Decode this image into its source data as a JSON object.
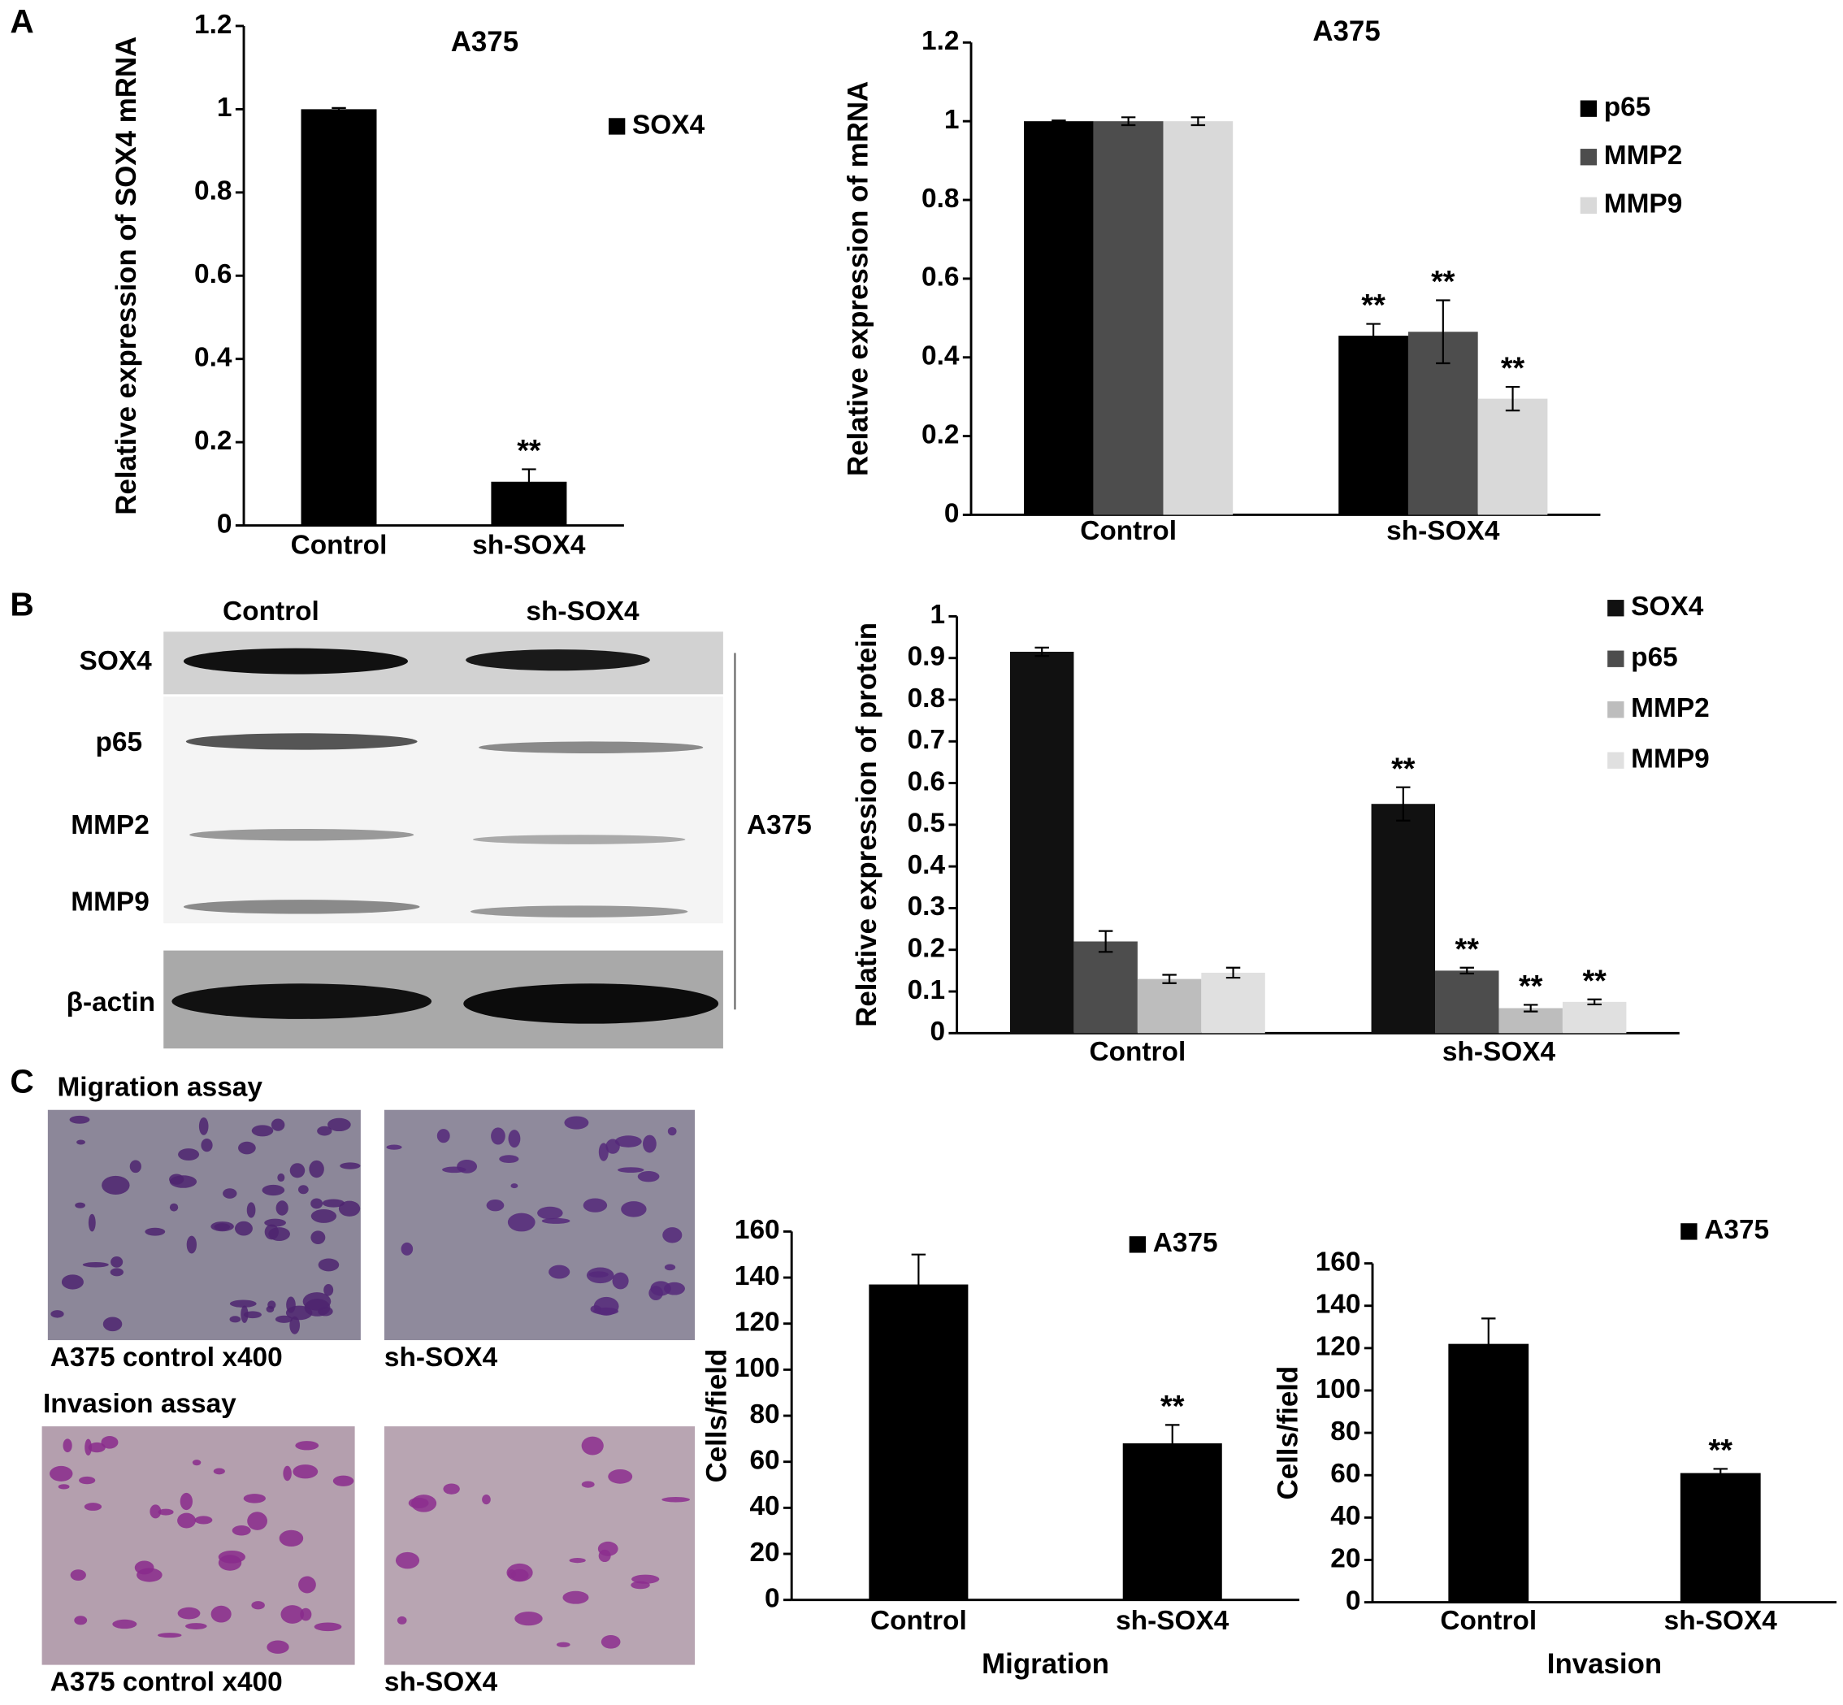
{
  "panels": {
    "letters": [
      "A",
      "B",
      "C"
    ]
  },
  "western_blot": {
    "columns": [
      "Control",
      "sh-SOX4"
    ],
    "rows": [
      "SOX4",
      "p65",
      "MMP2",
      "MMP9",
      "β-actin"
    ],
    "cell_line": "A375"
  },
  "micrographs": {
    "migration": {
      "title": "Migration assay",
      "captions": [
        "A375 control x400",
        "sh-SOX4"
      ]
    },
    "invasion": {
      "title": "Invasion assay",
      "captions": [
        "A375 control x400",
        "sh-SOX4"
      ]
    }
  },
  "chart_data": [
    {
      "type": "bar",
      "title": "A375",
      "y_label": "Relative expression of SOX4 mRNA",
      "categories": [
        "Control",
        "sh-SOX4"
      ],
      "series": [
        {
          "name": "SOX4",
          "color": "#000000",
          "values": [
            1,
            0.105
          ],
          "errors": [
            0.003,
            0.03
          ],
          "significance": [
            null,
            "**"
          ]
        }
      ],
      "ylim": [
        0,
        1.2
      ],
      "yticks": [
        0,
        0.2,
        0.4,
        0.6,
        0.8,
        1,
        1.2
      ]
    },
    {
      "type": "bar",
      "title": "A375",
      "y_label": "Relative expression of mRNA",
      "categories": [
        "Control",
        "sh-SOX4"
      ],
      "series": [
        {
          "name": "p65",
          "color": "#000000",
          "values": [
            1,
            0.455
          ],
          "errors": [
            0.002,
            0.03
          ],
          "significance": [
            null,
            "**"
          ]
        },
        {
          "name": "MMP2",
          "color": "#4d4d4d",
          "values": [
            1,
            0.465
          ],
          "errors": [
            0.01,
            0.08
          ],
          "significance": [
            null,
            "**"
          ]
        },
        {
          "name": "MMP9",
          "color": "#d9d9d9",
          "values": [
            1,
            0.295
          ],
          "errors": [
            0.01,
            0.03
          ],
          "significance": [
            null,
            "**"
          ]
        }
      ],
      "ylim": [
        0,
        1.2
      ],
      "yticks": [
        0,
        0.2,
        0.4,
        0.6,
        0.8,
        1,
        1.2
      ]
    },
    {
      "type": "bar",
      "y_label": "Relative expression of protein",
      "categories": [
        "Control",
        "sh-SOX4"
      ],
      "series": [
        {
          "name": "SOX4",
          "color": "#111111",
          "values": [
            0.915,
            0.55
          ],
          "errors": [
            0.01,
            0.04
          ],
          "significance": [
            null,
            "**"
          ]
        },
        {
          "name": "p65",
          "color": "#4d4d4d",
          "values": [
            0.22,
            0.15
          ],
          "errors": [
            0.025,
            0.007
          ],
          "significance": [
            null,
            "**"
          ]
        },
        {
          "name": "MMP2",
          "color": "#bdbdbd",
          "values": [
            0.13,
            0.06
          ],
          "errors": [
            0.01,
            0.008
          ],
          "significance": [
            null,
            "**"
          ]
        },
        {
          "name": "MMP9",
          "color": "#e0e0e0",
          "values": [
            0.145,
            0.075
          ],
          "errors": [
            0.012,
            0.006
          ],
          "significance": [
            null,
            "**"
          ]
        }
      ],
      "ylim": [
        0,
        1
      ],
      "yticks": [
        0,
        0.1,
        0.2,
        0.3,
        0.4,
        0.5,
        0.6,
        0.7,
        0.8,
        0.9,
        1
      ]
    },
    {
      "type": "bar",
      "y_label": "Cells/field",
      "x_label": "Migration",
      "categories": [
        "Control",
        "sh-SOX4"
      ],
      "series": [
        {
          "name": "A375",
          "color": "#000000",
          "values": [
            137,
            68
          ],
          "errors": [
            13,
            8
          ],
          "significance": [
            null,
            "**"
          ]
        }
      ],
      "ylim": [
        0,
        160
      ],
      "yticks": [
        0,
        20,
        40,
        60,
        80,
        100,
        120,
        140,
        160
      ]
    },
    {
      "type": "bar",
      "y_label": "Cells/field",
      "x_label": "Invasion",
      "categories": [
        "Control",
        "sh-SOX4"
      ],
      "series": [
        {
          "name": "A375",
          "color": "#000000",
          "values": [
            122,
            61
          ],
          "errors": [
            12,
            2
          ],
          "significance": [
            null,
            "**"
          ]
        }
      ],
      "ylim": [
        0,
        160
      ],
      "yticks": [
        0,
        20,
        40,
        60,
        80,
        100,
        120,
        140,
        160
      ]
    }
  ]
}
